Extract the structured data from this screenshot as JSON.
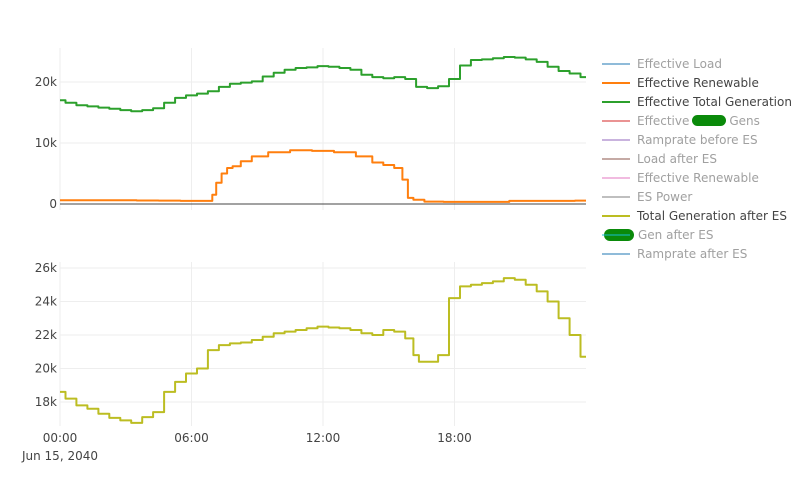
{
  "chart_data": [
    {
      "type": "line",
      "panel": "top",
      "x_ticks": [
        "00:00",
        "06:00",
        "12:00",
        "18:00"
      ],
      "y_ticks": [
        "0",
        "10k",
        "20k"
      ],
      "ylim": [
        -500,
        26500
      ],
      "grid": true,
      "series": [
        {
          "name": "Effective Renewable",
          "color": "#ff7f0e",
          "x": [
            0,
            1,
            2,
            3,
            4,
            5,
            6,
            6.9,
            7.0,
            7.25,
            7.5,
            7.75,
            8,
            8.5,
            9,
            10,
            11,
            12,
            13,
            14,
            14.5,
            15,
            15.5,
            15.75,
            16,
            16.25,
            17,
            18,
            19,
            20,
            21,
            22,
            23,
            24
          ],
          "y": [
            600,
            600,
            600,
            600,
            580,
            550,
            500,
            500,
            1500,
            3500,
            5000,
            5900,
            6200,
            7000,
            7800,
            8500,
            8800,
            8700,
            8500,
            7800,
            6800,
            6400,
            5900,
            4000,
            1000,
            700,
            400,
            350,
            350,
            350,
            500,
            500,
            500,
            550
          ]
        },
        {
          "name": "Effective Total Generation",
          "color": "#2ca02c",
          "x": [
            0,
            0.5,
            1,
            1.5,
            2,
            2.5,
            3,
            3.5,
            4,
            4.5,
            5,
            5.5,
            6,
            6.5,
            7,
            7.5,
            8,
            8.5,
            9,
            9.5,
            10,
            10.5,
            11,
            11.5,
            12,
            12.5,
            13,
            13.5,
            14,
            14.5,
            15,
            15.5,
            16,
            16.5,
            17,
            17.5,
            18,
            18.5,
            19,
            19.5,
            20,
            20.5,
            21,
            21.5,
            22,
            22.5,
            23,
            23.5,
            24
          ],
          "y": [
            17000,
            16600,
            16200,
            16000,
            15800,
            15600,
            15400,
            15200,
            15400,
            15700,
            16600,
            17400,
            17800,
            18100,
            18500,
            19200,
            19700,
            19900,
            20100,
            20900,
            21500,
            22000,
            22300,
            22400,
            22600,
            22500,
            22300,
            22000,
            21200,
            20800,
            20600,
            20800,
            20500,
            19200,
            19000,
            19300,
            20500,
            22700,
            23600,
            23700,
            23900,
            24100,
            24000,
            23700,
            23300,
            22500,
            21800,
            21400,
            20800
          ]
        },
        {
          "name": "zero-line",
          "color": "#444444",
          "x": [
            0,
            24
          ],
          "y": [
            0,
            0
          ]
        }
      ]
    },
    {
      "type": "line",
      "panel": "bottom",
      "x_ticks": [
        "00:00",
        "06:00",
        "12:00",
        "18:00"
      ],
      "x_date_label": "Jun 15, 2040",
      "y_ticks": [
        "18k",
        "20k",
        "22k",
        "24k",
        "26k"
      ],
      "ylim": [
        16500,
        26100
      ],
      "grid": true,
      "series": [
        {
          "name": "Total Generation after ES",
          "color": "#bcbd22",
          "x": [
            0,
            0.5,
            1,
            1.5,
            2,
            2.5,
            3,
            3.5,
            4,
            4.5,
            5,
            5.5,
            6,
            6.5,
            7,
            7.5,
            8,
            8.5,
            9,
            9.5,
            10,
            10.5,
            11,
            11.5,
            12,
            12.5,
            13,
            13.5,
            14,
            14.5,
            15,
            15.5,
            16,
            16.25,
            16.5,
            17,
            17.5,
            18,
            18.5,
            19,
            19.5,
            20,
            20.5,
            21,
            21.5,
            22,
            22.5,
            23,
            23.5,
            24
          ],
          "y": [
            18600,
            18200,
            17800,
            17600,
            17300,
            17050,
            16900,
            16750,
            17100,
            17400,
            18600,
            19200,
            19700,
            20000,
            21100,
            21400,
            21500,
            21550,
            21700,
            21900,
            22100,
            22200,
            22300,
            22400,
            22500,
            22450,
            22400,
            22300,
            22100,
            22000,
            22300,
            22200,
            21800,
            20800,
            20400,
            20400,
            20800,
            24200,
            24900,
            25000,
            25100,
            25200,
            25400,
            25300,
            25000,
            24600,
            24000,
            23000,
            22000,
            20700
          ]
        }
      ]
    }
  ],
  "legend": [
    {
      "label": "Effective Load",
      "color": "#1f77b4",
      "active": false
    },
    {
      "label": "Effective Renewable",
      "color": "#ff7f0e",
      "active": true
    },
    {
      "label": "Effective Total Generation",
      "color": "#2ca02c",
      "active": true
    },
    {
      "label": "Effective",
      "label_tail": "Gens",
      "redacted": true,
      "color": "#d62728",
      "active": false
    },
    {
      "label": "Ramprate before ES",
      "color": "#9467bd",
      "active": false
    },
    {
      "label": "Load after ES",
      "color": "#8c564b",
      "active": false
    },
    {
      "label": "Effective Renewable",
      "color": "#e377c2",
      "active": false
    },
    {
      "label": "ES Power",
      "color": "#7f7f7f",
      "active": false
    },
    {
      "label": "Total Generation after ES",
      "color": "#bcbd22",
      "active": true
    },
    {
      "label": "Gen after ES",
      "label_head": "",
      "redacted": true,
      "color": "#17becf",
      "active": false
    },
    {
      "label": "Ramprate after ES",
      "color": "#1f77b4",
      "active": false
    }
  ]
}
